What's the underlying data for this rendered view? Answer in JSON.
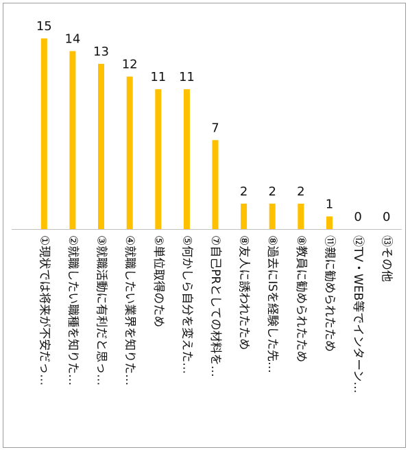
{
  "chart_data": {
    "type": "bar",
    "orientation": "vertical",
    "categories": [
      "①現状では将来が不安だっ…",
      "②就職したい職種を知りた…",
      "③就職活動に有利だと思っ…",
      "④就職したい業界を知りた…",
      "⑤単位取得のため",
      "⑤何かしら自分を変えた…",
      "⑦自己PRとしての材料を…",
      "⑧友人に誘われたため",
      "⑧過去にISを経験した先…",
      "⑧教員に勧められたため",
      "⑪親に勧められたため",
      "⑫TV・WEB等でインターン…",
      "⑬その他"
    ],
    "values": [
      15,
      14,
      13,
      12,
      11,
      11,
      7,
      2,
      2,
      2,
      1,
      0,
      0
    ],
    "ylim": [
      0,
      15
    ],
    "bar_color": "#FFC000",
    "grid": false,
    "legend": "none"
  }
}
